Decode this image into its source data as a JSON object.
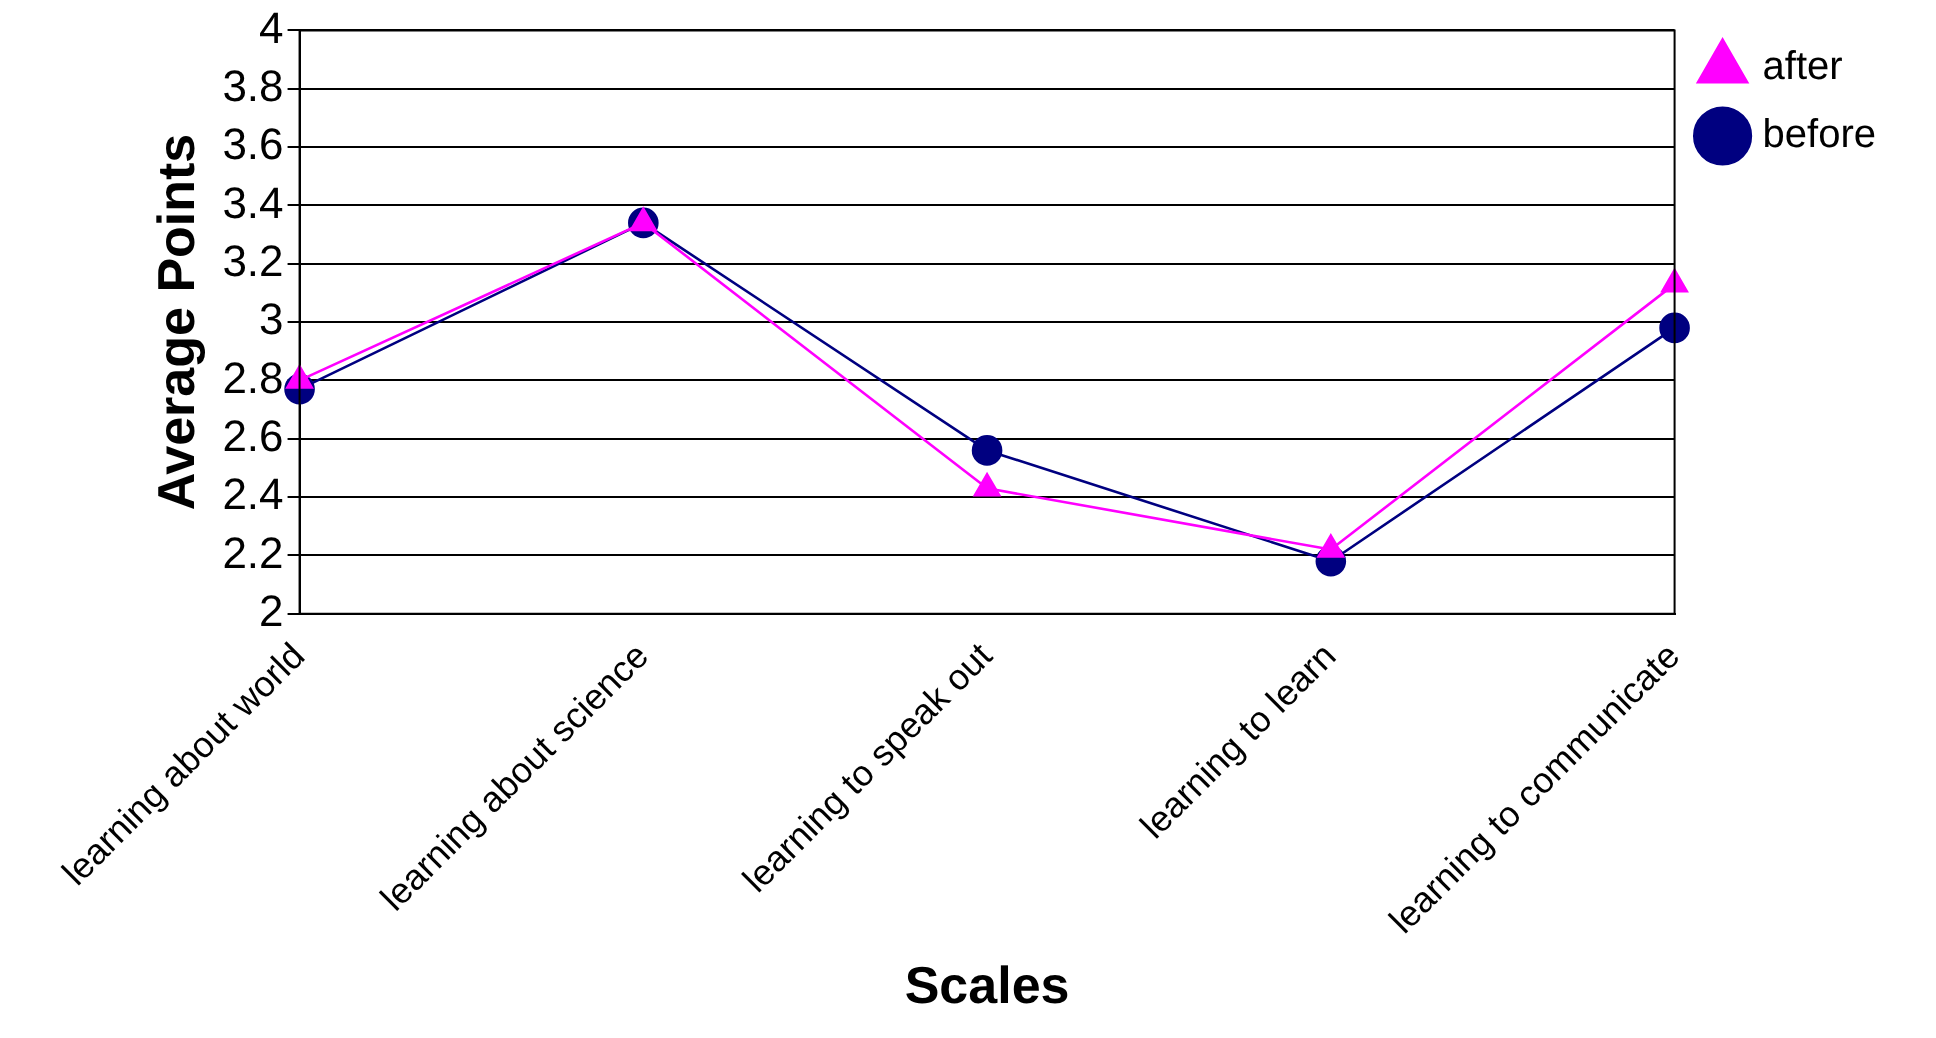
{
  "chart_data": {
    "type": "line",
    "xlabel": "Scales",
    "ylabel": "Average Points",
    "categories": [
      "learning about world",
      "learning about science",
      "learning to speak out",
      "learning to learn",
      "learning to communicate"
    ],
    "series": [
      {
        "name": "before",
        "color": "#000080",
        "values": [
          2.77,
          3.34,
          2.56,
          2.18,
          2.98
        ],
        "marker": "circle"
      },
      {
        "name": "after",
        "color": "#ff00ff",
        "values": [
          2.8,
          3.34,
          2.43,
          2.22,
          3.13
        ],
        "marker": "triangle"
      }
    ],
    "ylim": [
      2,
      4
    ],
    "yticks": [
      2,
      2.2,
      2.4,
      2.6,
      2.8,
      3,
      3.2,
      3.4,
      3.6,
      3.8,
      4
    ],
    "grid": "y",
    "legend": "top right"
  }
}
